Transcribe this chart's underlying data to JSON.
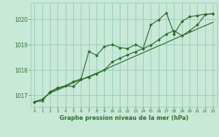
{
  "title": "Graphe pression niveau de la mer (hPa)",
  "background_color": "#c8e8d8",
  "plot_bg_color": "#c8e8d8",
  "grid_color": "#99ccbb",
  "line_color": "#2d6e2d",
  "marker_color": "#2d6e2d",
  "xlim": [
    -0.5,
    23.5
  ],
  "ylim": [
    1016.55,
    1020.65
  ],
  "yticks": [
    1017,
    1018,
    1019,
    1020
  ],
  "xticks": [
    0,
    1,
    2,
    3,
    4,
    5,
    6,
    7,
    8,
    9,
    10,
    11,
    12,
    13,
    14,
    15,
    16,
    17,
    18,
    19,
    20,
    21,
    22,
    23
  ],
  "series1": [
    1016.75,
    1016.78,
    1017.15,
    1017.3,
    1017.38,
    1017.55,
    1017.65,
    1018.73,
    1018.58,
    1018.92,
    1019.0,
    1018.88,
    1018.85,
    1019.0,
    1018.85,
    1019.78,
    1019.98,
    1020.25,
    1019.42,
    1019.92,
    1020.1,
    1020.15,
    1020.2,
    1020.22
  ],
  "series2": [
    1016.75,
    1016.85,
    1017.12,
    1017.28,
    1017.38,
    1017.35,
    1017.62,
    1017.72,
    1017.85,
    1018.0,
    1018.32,
    1018.47,
    1018.6,
    1018.72,
    1018.85,
    1018.98,
    1019.2,
    1019.42,
    1019.55,
    1019.35,
    1019.55,
    1019.78,
    1020.18,
    1020.22
  ],
  "series3": [
    1016.75,
    1016.85,
    1017.1,
    1017.22,
    1017.35,
    1017.5,
    1017.62,
    1017.75,
    1017.88,
    1018.0,
    1018.15,
    1018.28,
    1018.42,
    1018.55,
    1018.68,
    1018.82,
    1018.95,
    1019.08,
    1019.22,
    1019.35,
    1019.48,
    1019.62,
    1019.75,
    1019.88
  ]
}
